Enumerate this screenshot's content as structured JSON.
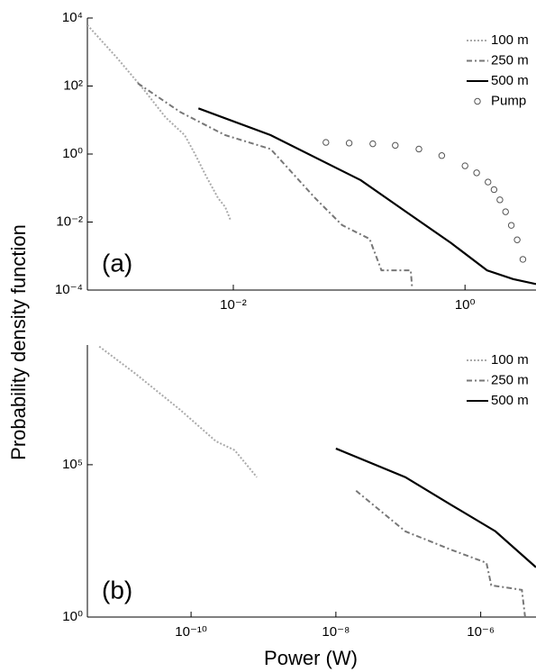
{
  "chart_data": [
    {
      "type": "line",
      "annotation": "(a)",
      "ylabel": "Probability density function",
      "log_x": true,
      "log_y": true,
      "legend": "upper right",
      "xlim": [
        0.00055,
        4.1
      ],
      "ylim": [
        0.0001,
        10000
      ],
      "xticks": [
        {
          "value": 0.01,
          "label": "10⁻²"
        },
        {
          "value": 1,
          "label": "10⁰"
        }
      ],
      "yticks": [
        {
          "value": 10000,
          "label": "10⁴"
        },
        {
          "value": 100,
          "label": "10²"
        },
        {
          "value": 1,
          "label": "10⁰"
        },
        {
          "value": 0.01,
          "label": "10⁻²"
        },
        {
          "value": 0.0001,
          "label": "10⁻⁴"
        }
      ],
      "series": [
        {
          "name": "100 m",
          "color": "#aaaaaa",
          "style": "dotted",
          "x": [
            0.00055,
            0.001,
            0.0017,
            0.0026,
            0.0038,
            0.0046,
            0.0058,
            0.0074,
            0.0085,
            0.0095
          ],
          "values": [
            6200,
            650,
            76,
            12,
            3.6,
            1.1,
            0.23,
            0.05,
            0.028,
            0.011
          ]
        },
        {
          "name": "250 m",
          "color": "#777777",
          "style": "dashdot",
          "x": [
            0.0015,
            0.0035,
            0.0085,
            0.021,
            0.051,
            0.087,
            0.15,
            0.19,
            0.34,
            0.35
          ],
          "values": [
            120,
            17,
            3.6,
            1.4,
            0.05,
            0.0081,
            0.0032,
            0.00038,
            0.00038,
            0.00011
          ]
        },
        {
          "name": "500 m",
          "color": "#000000",
          "style": "solid",
          "x": [
            0.005,
            0.021,
            0.126,
            0.31,
            0.76,
            1.55,
            2.6,
            4.1
          ],
          "values": [
            22,
            3.6,
            0.17,
            0.02,
            0.0024,
            0.00038,
            0.00021,
            0.00015
          ]
        },
        {
          "name": "Pump",
          "color": "#555555",
          "style": "markers",
          "x": [
            0.063,
            0.1,
            0.16,
            0.25,
            0.4,
            0.63,
            1,
            1.26,
            1.58,
            1.78,
            2,
            2.24,
            2.51,
            2.82,
            3.16
          ],
          "values": [
            2.2,
            2.1,
            2,
            1.8,
            1.4,
            0.9,
            0.45,
            0.28,
            0.15,
            0.09,
            0.045,
            0.02,
            0.008,
            0.003,
            0.0008
          ]
        }
      ]
    },
    {
      "type": "line",
      "annotation": "(b)",
      "xlabel": "Power (W)",
      "log_x": true,
      "log_y": true,
      "legend": "upper right",
      "xlim": [
        3.7e-12,
        5.8e-06
      ],
      "ylim": [
        1,
        850000000
      ],
      "xticks": [
        {
          "value": 1e-10,
          "label": "10⁻¹⁰"
        },
        {
          "value": 1e-08,
          "label": "10⁻⁸"
        },
        {
          "value": 1e-06,
          "label": "10⁻⁶"
        }
      ],
      "yticks": [
        {
          "value": 1,
          "label": "10⁰"
        },
        {
          "value": 100000,
          "label": "10⁵"
        }
      ],
      "series": [
        {
          "name": "100 m",
          "color": "#aaaaaa",
          "style": "dotted",
          "x": [
            5.4e-12,
            1.7e-11,
            7.1e-11,
            2.2e-10,
            4e-10,
            8.1e-10
          ],
          "values": [
            760000000,
            98000000,
            6300000,
            590000,
            300000,
            39000
          ]
        },
        {
          "name": "250 m",
          "color": "#777777",
          "style": "dashdot",
          "x": [
            1.9e-08,
            9.1e-08,
            3.8e-07,
            1.2e-06,
            1.4e-06,
            3.7e-06,
            4.1e-06
          ],
          "values": [
            14000,
            650,
            166,
            60,
            11,
            7.8,
            1
          ]
        },
        {
          "name": "500 m",
          "color": "#000000",
          "style": "solid",
          "x": [
            1e-08,
            9.1e-08,
            3.8e-07,
            1.6e-06,
            5.8e-06
          ],
          "values": [
            340000,
            39000,
            5000,
            650,
            43
          ]
        }
      ]
    }
  ]
}
